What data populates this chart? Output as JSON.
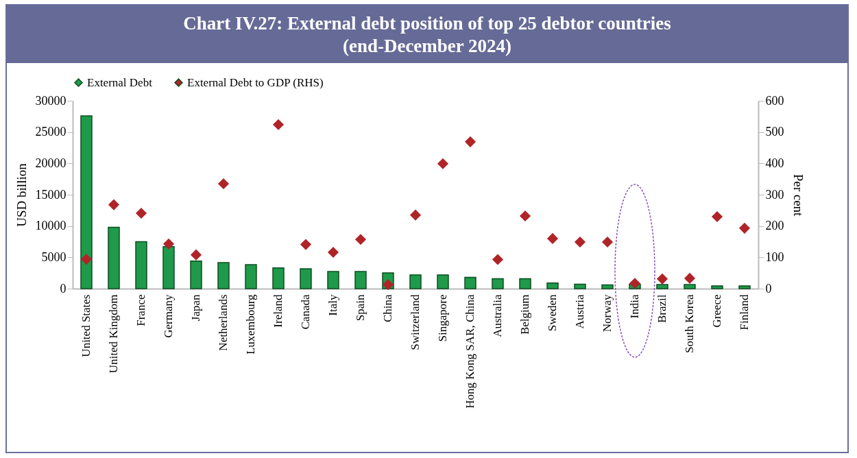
{
  "chart_data": {
    "type": "bar",
    "title": "Chart IV.27: External debt position of top 25 debtor countries\n(end-December 2024)",
    "categories": [
      "United States",
      "United Kingdom",
      "France",
      "Germany",
      "Japan",
      "Netherlands",
      "Luxembourg",
      "Ireland",
      "Canada",
      "Italy",
      "Spain",
      "China",
      "Switzerland",
      "Singapore",
      "Hong Kong SAR, China",
      "Australia",
      "Belgium",
      "Sweden",
      "Austria",
      "Norway",
      "India",
      "Brazil",
      "South Korea",
      "Greece",
      "Finland"
    ],
    "series": [
      {
        "name": "External Debt",
        "color": "#1f9a4a",
        "values": [
          27600,
          9800,
          7500,
          6700,
          4400,
          4150,
          3830,
          3300,
          3180,
          2740,
          2740,
          2520,
          2200,
          2200,
          1800,
          1600,
          1600,
          900,
          700,
          600,
          700,
          650,
          650,
          450,
          450
        ]
      },
      {
        "name": "External Debt to GDP (RHS)",
        "type": "scatter",
        "axis": "y2",
        "color": "#b02428",
        "values": [
          94,
          268,
          241,
          143,
          108,
          335,
          null,
          524,
          141,
          116,
          157,
          13,
          235,
          399,
          469,
          93,
          232,
          160,
          149,
          149,
          17,
          31,
          33,
          230,
          193
        ]
      }
    ],
    "marker": "diamond",
    "legend": "top",
    "ylabel": "USD billion",
    "y2label": "Per cent",
    "ylim": [
      0,
      30000
    ],
    "yticks": [
      0,
      5000,
      10000,
      15000,
      20000,
      25000,
      30000
    ],
    "y2lim": [
      0,
      600
    ],
    "y2ticks": [
      0,
      100,
      200,
      300,
      400,
      500,
      600
    ]
  }
}
